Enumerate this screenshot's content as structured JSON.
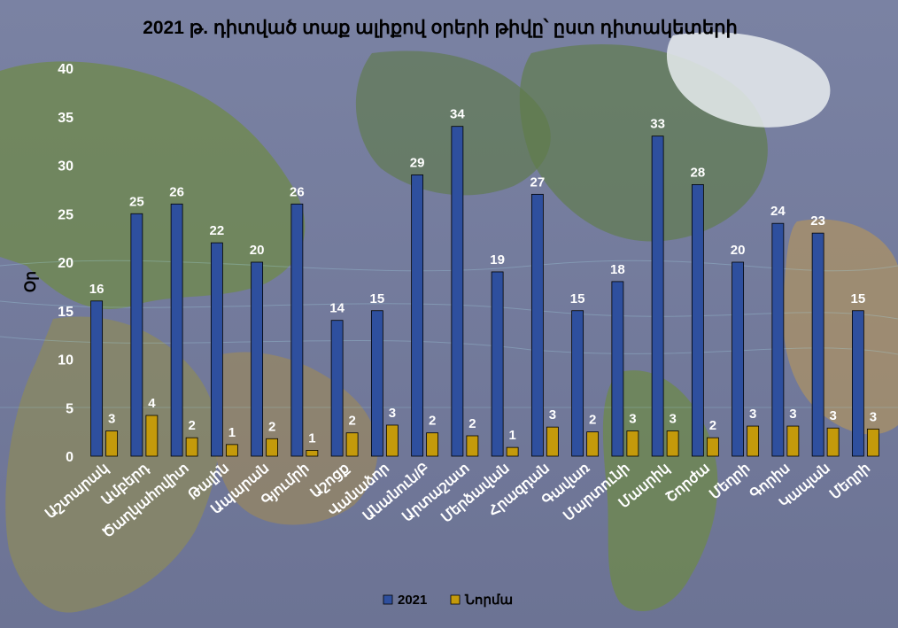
{
  "chart_data": {
    "type": "bar",
    "title": "2021 թ. դիտված տաք ալիքով օրերի թիվը՝ ըստ դիտակետերի",
    "ylabel": "Օր",
    "xlabel": "",
    "ylim": [
      0,
      40
    ],
    "yticks": [
      "0",
      "5",
      "10",
      "15",
      "20",
      "25",
      "30",
      "35",
      "40"
    ],
    "legend_position": "bottom",
    "grid": false,
    "categories": [
      "Աշտարակ",
      "Ամբերդ",
      "Ծաղկահովիտ",
      "Թալին",
      "Ապարան",
      "Գյումրի",
      "Աշոցք",
      "Վանաձոր",
      "Անանուն/Բ",
      "Արտաշատ",
      "Մերձավան",
      "Հրազդան",
      "Գավառ",
      "Մարտունի",
      "Մասրիկ",
      "Շորժա",
      "Մեղրի",
      "Գորիս",
      "Կապան",
      "Մեղրի"
    ],
    "series": [
      {
        "name": "2021",
        "color": "#2e4f9e",
        "values": [
          16,
          25,
          26,
          22,
          20,
          26,
          14,
          15,
          29,
          34,
          19,
          27,
          15,
          18,
          33,
          28,
          20,
          24,
          23,
          15
        ]
      },
      {
        "name": "Նորմա",
        "color": "#c49a0b",
        "values": [
          2.6,
          4.2,
          1.9,
          1.2,
          1.8,
          0.6,
          2.4,
          3.2,
          2.4,
          2.1,
          0.9,
          3.0,
          2.5,
          2.6,
          2.6,
          1.9,
          3.1,
          3.1,
          2.9,
          2.8
        ]
      }
    ],
    "data_labels": {
      "2021": [
        "16",
        "25",
        "26",
        "22",
        "20",
        "26",
        "14",
        "15",
        "29",
        "34",
        "19",
        "27",
        "15",
        "18",
        "33",
        "28",
        "20",
        "24",
        "23",
        "15"
      ],
      "Նորմա": [
        "3",
        "4",
        "2",
        "1",
        "2",
        "1",
        "2",
        "3",
        "2",
        "2",
        "1",
        "3",
        "2",
        "3",
        "3",
        "2",
        "3",
        "3",
        "3",
        "3"
      ]
    }
  }
}
